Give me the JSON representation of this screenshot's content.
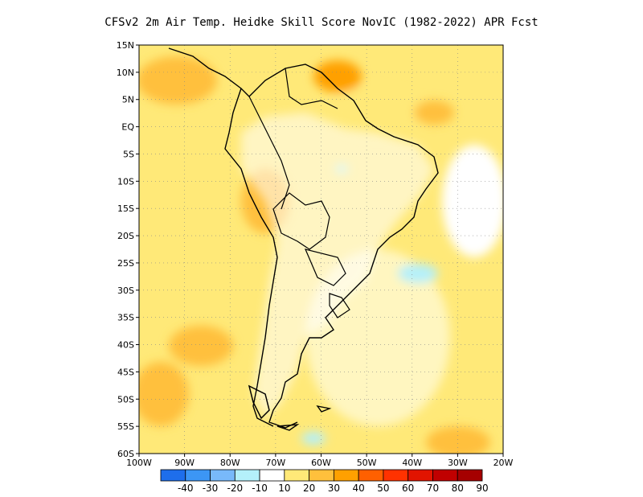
{
  "title": "CFSv2  2m Air Temp. Heidke Skill Score NovIC (1982-2022) APR Fcst",
  "map": {
    "lat_labels": [
      "15N",
      "10N",
      "5N",
      "EQ",
      "5S",
      "10S",
      "15S",
      "20S",
      "25S",
      "30S",
      "35S",
      "40S",
      "45S",
      "50S",
      "55S",
      "60S"
    ],
    "lon_labels": [
      "100W",
      "90W",
      "80W",
      "70W",
      "60W",
      "50W",
      "40W",
      "30W",
      "20W"
    ],
    "lat_range": [
      -60,
      15
    ],
    "lon_range": [
      -100,
      -20
    ],
    "gridlines": true,
    "gridline_style": "dotted"
  },
  "colorbar": {
    "labels": [
      "-40",
      "-30",
      "-20",
      "-10",
      "10",
      "20",
      "30",
      "40",
      "50",
      "60",
      "70",
      "80",
      "90"
    ],
    "colors": [
      "#1e6eeb",
      "#3c96f5",
      "#78b9fa",
      "#b4f0fa",
      "#ffffff",
      "#ffe978",
      "#ffc03c",
      "#ffa000",
      "#ff6000",
      "#ff3200",
      "#e11400",
      "#c00000",
      "#a50000"
    ]
  }
}
